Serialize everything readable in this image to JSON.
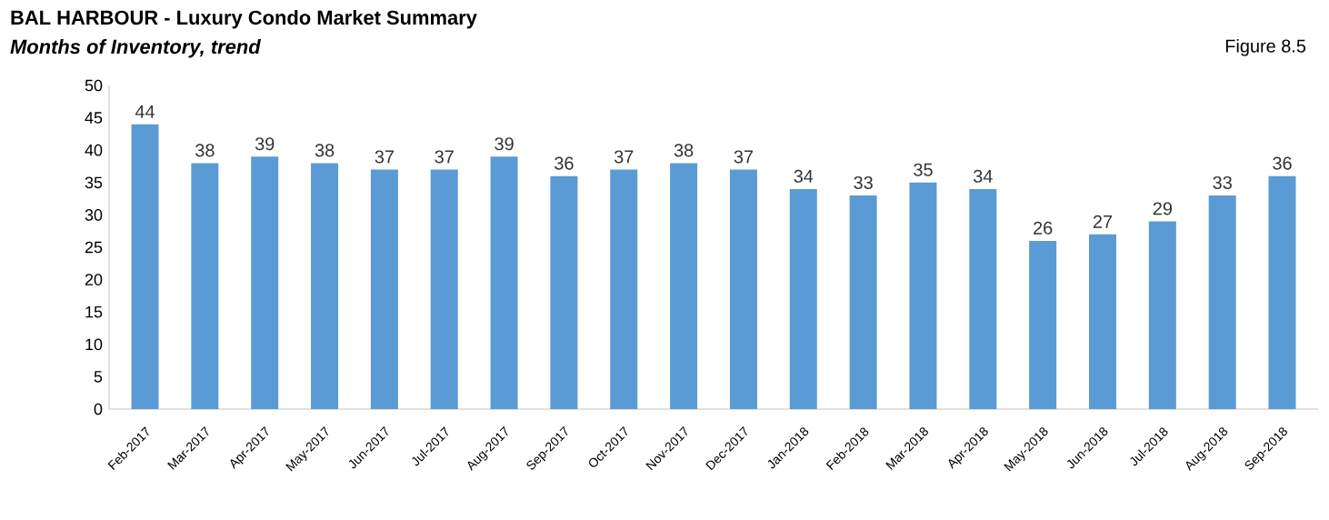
{
  "chart_data": {
    "type": "bar",
    "title": "BAL HARBOUR - Luxury Condo Market Summary",
    "subtitle": "Months of Inventory, trend",
    "annotations": [
      "Figure 8.5"
    ],
    "categories": [
      "Feb-2017",
      "Mar-2017",
      "Apr-2017",
      "May-2017",
      "Jun-2017",
      "Jul-2017",
      "Aug-2017",
      "Sep-2017",
      "Oct-2017",
      "Nov-2017",
      "Dec-2017",
      "Jan-2018",
      "Feb-2018",
      "Mar-2018",
      "Apr-2018",
      "May-2018",
      "Jun-2018",
      "Jul-2018",
      "Aug-2018",
      "Sep-2018"
    ],
    "values": [
      44,
      38,
      39,
      38,
      37,
      37,
      39,
      36,
      37,
      38,
      37,
      34,
      33,
      35,
      34,
      26,
      27,
      29,
      33,
      36
    ],
    "color": "#5b9bd5",
    "ylim": [
      0,
      50
    ],
    "yticks": [
      0,
      5,
      10,
      15,
      20,
      25,
      30,
      35,
      40,
      45,
      50
    ],
    "data_labels": true
  }
}
